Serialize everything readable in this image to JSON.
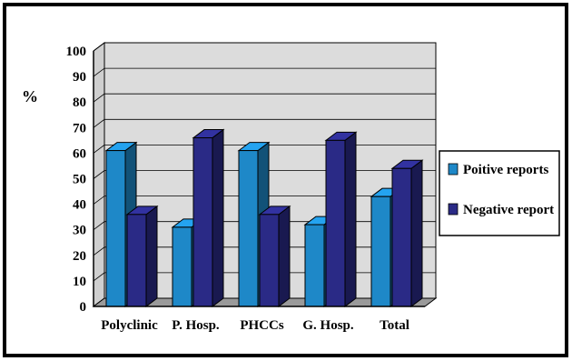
{
  "chart_data": {
    "type": "bar",
    "title": "",
    "xlabel": "",
    "ylabel": "%",
    "ylim": [
      0,
      100
    ],
    "yticks": [
      "0",
      "10",
      "20",
      "30",
      "40",
      "50",
      "60",
      "70",
      "80",
      "90",
      "100"
    ],
    "categories": [
      "Polyclinic",
      "P. Hosp.",
      "PHCCs",
      "G. Hosp.",
      "Total"
    ],
    "series": [
      {
        "name": "Poitive reports",
        "color": "#1e88c8",
        "values": [
          61,
          31,
          61,
          32,
          43
        ]
      },
      {
        "name": "Negative report",
        "color": "#2a2a86",
        "values": [
          36,
          66,
          36,
          65,
          54
        ]
      }
    ],
    "grid": true,
    "legend_position": "right",
    "style": "3d"
  }
}
